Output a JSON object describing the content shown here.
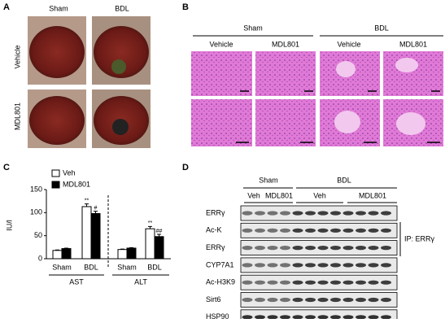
{
  "panel_labels": [
    "A",
    "B",
    "C",
    "D"
  ],
  "panel_a": {
    "columns": [
      "Sham",
      "BDL"
    ],
    "rows": [
      "Vehicle",
      "MDL801"
    ]
  },
  "panel_b": {
    "groups": [
      "Sham",
      "BDL"
    ],
    "columns": [
      "Vehicle",
      "MDL801",
      "Vehicle",
      "MDL801"
    ]
  },
  "panel_d": {
    "groups": [
      "Sham",
      "BDL"
    ],
    "columns": [
      "Veh",
      "MDL801",
      "Veh",
      "MDL801"
    ],
    "rows": [
      "ERRγ",
      "Ac-K",
      "ERRγ",
      "CYP7A1",
      "Ac-H3K9",
      "Sirt6",
      "HSP90"
    ],
    "bracket_label": "IP: ERRγ"
  },
  "chart_data": {
    "type": "bar",
    "ylabel": "IU/l",
    "categories": [
      "Sham",
      "BDL",
      "Sham",
      "BDL"
    ],
    "groups": [
      "AST",
      "ALT"
    ],
    "series": [
      {
        "name": "Veh",
        "color": "#ffffff",
        "values": [
          18,
          113,
          20,
          65
        ],
        "errors": [
          1,
          6,
          1,
          5
        ]
      },
      {
        "name": "MDL801",
        "color": "#000000",
        "values": [
          22,
          98,
          23,
          48
        ],
        "errors": [
          1,
          5,
          1,
          5
        ]
      }
    ],
    "annotations": [
      "**",
      "#",
      "**",
      "##"
    ],
    "ylim": [
      0,
      150
    ],
    "yticks": [
      0,
      50,
      100,
      150
    ],
    "legend": "top-left"
  }
}
